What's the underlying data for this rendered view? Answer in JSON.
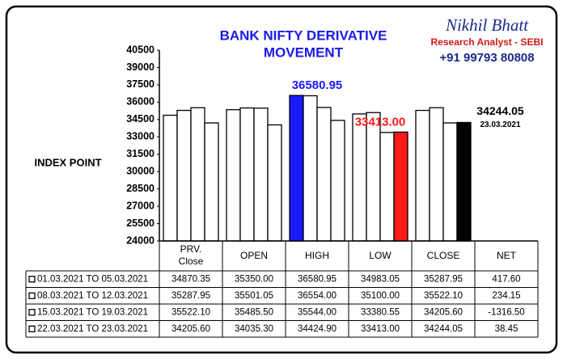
{
  "chart_data": {
    "type": "bar",
    "title": [
      "BANK NIFTY DERIVATIVE",
      "MOVEMENT"
    ],
    "watermark": [
      "Nikhil Bhatt",
      "Research Analyst - SEBI",
      "+91 99793 80808"
    ],
    "y_label": "INDEX POINT",
    "categories": [
      "PRV. Close",
      "OPEN",
      "HIGH",
      "LOW",
      "CLOSE"
    ],
    "net_header": "NET",
    "ylim": [
      24000,
      40500
    ],
    "yticks": [
      24000,
      25500,
      27000,
      28500,
      30000,
      31500,
      33000,
      34500,
      36000,
      37500,
      39000,
      40500
    ],
    "series": [
      {
        "name": "01.03.2021 TO 05.03.2021",
        "color": "#ffffff",
        "values": [
          34870.35,
          35350,
          36580.95,
          34983.05,
          35287.95
        ],
        "value_labels": [
          "34870.35",
          "35350.00",
          "36580.95",
          "34983.05",
          "35287.95"
        ],
        "net": 417.6,
        "net_label": "417.60"
      },
      {
        "name": "08.03.2021 TO 12.03.2021",
        "color": "#ffffff",
        "values": [
          35287.95,
          35501.05,
          36554,
          35100,
          35522.1
        ],
        "value_labels": [
          "35287.95",
          "35501.05",
          "36554.00",
          "35100.00",
          "35522.10"
        ],
        "net": 234.15,
        "net_label": "234.15"
      },
      {
        "name": "15.03.2021 TO 19.03.2021",
        "color": "#ffffff",
        "values": [
          35522.1,
          35485.5,
          35544,
          33380.55,
          34205.6
        ],
        "value_labels": [
          "35522.10",
          "35485.50",
          "35544.00",
          "33380.55",
          "34205.60"
        ],
        "net": -1316.5,
        "net_label": "-1316.50"
      },
      {
        "name": "22.03.2021 TO 23.03.2021",
        "color": "#ffffff",
        "values": [
          34205.6,
          34035.3,
          34424.9,
          33413,
          34244.05
        ],
        "value_labels": [
          "34205.60",
          "34035.30",
          "34424.90",
          "33413.00",
          "34244.05"
        ],
        "net": 38.45,
        "net_label": "38.45"
      }
    ],
    "highlights": [
      {
        "category": 2,
        "series": 0,
        "color": "#1a1aff",
        "label": "36580.95"
      },
      {
        "category": 3,
        "series": 3,
        "color": "#ff1a1a",
        "label": "33413.00"
      },
      {
        "category": 4,
        "series": 3,
        "color": "#000000",
        "label": "34244.05",
        "sublabel": "23.03.2021"
      }
    ]
  }
}
